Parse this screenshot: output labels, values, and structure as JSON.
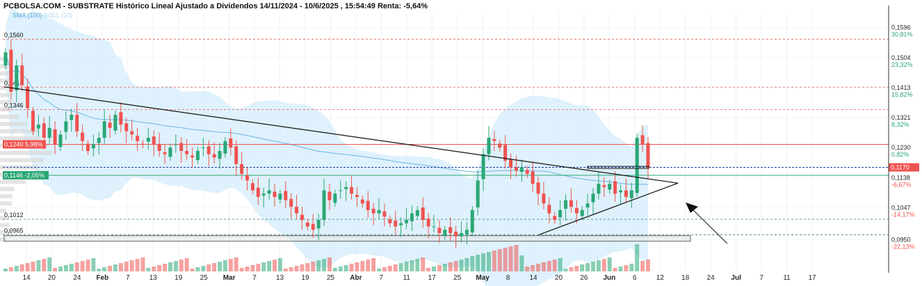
{
  "header": {
    "title": "PCBOLSA.COM - SUBSTRATE Histórico Lineal Ajustado a Dividendos 14/11/2024 - 10/6/2025 , 15:54:49 Renta: -5,64%"
  },
  "indicators": {
    "sma": "SMA (100)",
    "boll": "BOLL (20)"
  },
  "colors": {
    "up": "#2aa775",
    "down": "#ef5350",
    "band": "#d3ecfb",
    "sma": "#6cb6e3",
    "trend": "#111111",
    "red_level": "#ef5350",
    "green_level": "#2aa775",
    "blue_level": "#1f3fa0"
  },
  "chart_data": {
    "type": "candlestick",
    "x_labels": [
      "14",
      "20",
      "24",
      "Feb",
      "7",
      "13",
      "19",
      "25",
      "Mar",
      "7",
      "13",
      "19",
      "25",
      "Abr",
      "7",
      "11",
      "17",
      "25",
      "May",
      "8",
      "14",
      "20",
      "26",
      "Jun",
      "6",
      "12",
      "18",
      "24",
      "Jul",
      "7",
      "11",
      "17"
    ],
    "right_axis": [
      {
        "price": "0,1596",
        "pct": "30,81%"
      },
      {
        "price": "0,1504",
        "pct": "23,32%"
      },
      {
        "price": "0,1413",
        "pct": "15,82%"
      },
      {
        "price": "0,1321",
        "pct": "8,32%"
      },
      {
        "price": "0,1230",
        "pct": "0,82%"
      },
      {
        "price": "0,1138",
        "pct": "-6,67%"
      },
      {
        "price": "0,1047",
        "pct": "-14,17%"
      },
      {
        "price": "0,0950",
        "pct": "-22,13%"
      }
    ],
    "right_marker": "0,1170",
    "left_levels": [
      {
        "label": "0,1560",
        "price": 0.156
      },
      {
        "label": "0,1414",
        "price": 0.1414
      },
      {
        "label": "0,1346",
        "price": 0.1346
      },
      {
        "label": "0,1012",
        "price": 0.1012
      },
      {
        "label": "0,0965",
        "price": 0.0965
      }
    ],
    "current_price_tag": "0,1240  5,98%",
    "current_price": 0.124,
    "green_level_tag": "0,1146  -2,05%",
    "green_level": 0.1146,
    "blue_level": 0.117,
    "ylim": [
      0.09,
      0.162
    ],
    "closes": [
      0.152,
      0.14,
      0.148,
      0.142,
      0.135,
      0.128,
      0.13,
      0.126,
      0.129,
      0.124,
      0.127,
      0.131,
      0.133,
      0.128,
      0.125,
      0.122,
      0.124,
      0.126,
      0.131,
      0.129,
      0.133,
      0.13,
      0.128,
      0.127,
      0.125,
      0.124,
      0.126,
      0.124,
      0.122,
      0.121,
      0.123,
      0.124,
      0.122,
      0.121,
      0.12,
      0.122,
      0.123,
      0.121,
      0.12,
      0.122,
      0.125,
      0.123,
      0.118,
      0.115,
      0.113,
      0.11,
      0.108,
      0.109,
      0.11,
      0.108,
      0.109,
      0.107,
      0.105,
      0.103,
      0.101,
      0.099,
      0.098,
      0.101,
      0.11,
      0.107,
      0.109,
      0.11,
      0.111,
      0.109,
      0.108,
      0.106,
      0.104,
      0.103,
      0.104,
      0.102,
      0.1,
      0.099,
      0.1,
      0.101,
      0.103,
      0.104,
      0.101,
      0.099,
      0.099,
      0.097,
      0.098,
      0.097,
      0.096,
      0.097,
      0.098,
      0.104,
      0.113,
      0.121,
      0.126,
      0.125,
      0.123,
      0.119,
      0.117,
      0.116,
      0.117,
      0.115,
      0.112,
      0.109,
      0.106,
      0.103,
      0.101,
      0.104,
      0.107,
      0.105,
      0.103,
      0.104,
      0.106,
      0.109,
      0.112,
      0.111,
      0.112,
      0.109,
      0.11,
      0.108,
      0.11,
      0.126,
      0.124,
      0.117
    ]
  }
}
